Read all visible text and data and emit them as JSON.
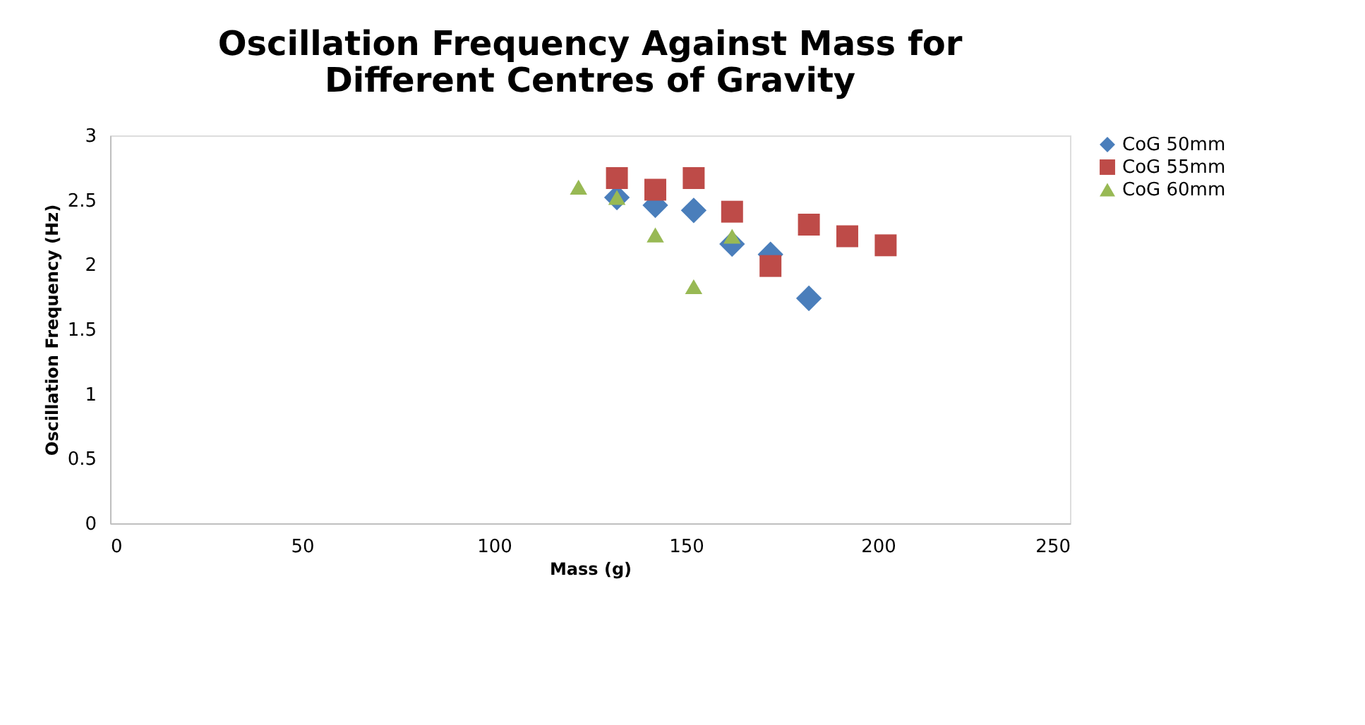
{
  "chart_data": {
    "type": "scatter",
    "title": "Oscillation Frequency Against Mass for Different Centres of Gravity",
    "xlabel": "Mass (g)",
    "ylabel": "Oscillation Frequency (Hz)",
    "xlim": [
      0,
      250
    ],
    "xticks": [
      0,
      50,
      100,
      150,
      200,
      250
    ],
    "ylim": [
      0,
      3
    ],
    "yticks": [
      0,
      0.5,
      1,
      1.5,
      2,
      2.5,
      3
    ],
    "grid": false,
    "legend": "right",
    "series": [
      {
        "name": "CoG 50mm",
        "color": "#4a7ebb",
        "marker": "diamond",
        "x": [
          132,
          142,
          152,
          162,
          172,
          182
        ],
        "values": [
          2.52,
          2.46,
          2.42,
          2.16,
          2.08,
          1.74
        ]
      },
      {
        "name": "CoG 55mm",
        "color": "#be4b48",
        "marker": "square",
        "x": [
          132,
          142,
          152,
          162,
          172,
          182,
          192,
          202
        ],
        "values": [
          2.67,
          2.58,
          2.67,
          2.41,
          1.99,
          2.31,
          2.22,
          2.15
        ]
      },
      {
        "name": "CoG 60mm",
        "color": "#98b954",
        "marker": "triangle",
        "x": [
          122,
          132,
          142,
          152,
          162
        ],
        "values": [
          2.6,
          2.52,
          2.23,
          1.83,
          2.22
        ]
      }
    ]
  }
}
